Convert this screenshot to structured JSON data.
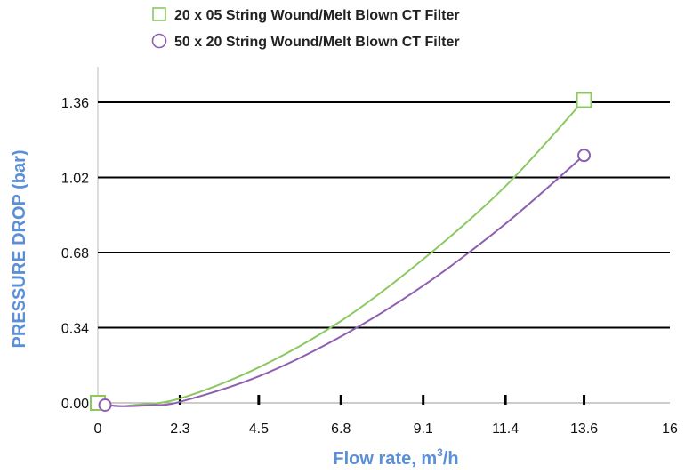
{
  "chart_data": {
    "type": "line",
    "xlabel": "Flow rate, m",
    "xlabel_sup": "3",
    "xlabel_suffix": "/h",
    "ylabel": "PRESSURE  DROP  (bar)",
    "x_ticks": [
      "0",
      "2.3",
      "4.5",
      "6.8",
      "9.1",
      "11.4",
      "13.6",
      "16"
    ],
    "y_ticks": [
      "0.00",
      "0.34",
      "0.68",
      "1.02",
      "1.36"
    ],
    "xlim": [
      0,
      16
    ],
    "ylim": [
      0,
      1.36
    ],
    "grid": "horizontal",
    "legend_position": "top",
    "series": [
      {
        "name": "20 x 05 String Wound/Melt Blown CT Filter",
        "color": "#8cc860",
        "marker": "square",
        "x": [
          0,
          0.5,
          1.0,
          2.3,
          4.5,
          6.8,
          9.1,
          11.4,
          13.6
        ],
        "y": [
          0.0,
          -0.015,
          -0.01,
          0.02,
          0.16,
          0.37,
          0.65,
          0.98,
          1.37
        ]
      },
      {
        "name": "50 x 20 String Wound/Melt Blown CT Filter",
        "color": "#8e5fb0",
        "marker": "circle",
        "x": [
          0.2,
          0.8,
          1.5,
          2.3,
          4.5,
          6.8,
          9.1,
          11.4,
          13.6
        ],
        "y": [
          -0.01,
          -0.015,
          -0.01,
          0.005,
          0.12,
          0.3,
          0.53,
          0.81,
          1.12
        ]
      }
    ],
    "endpoint_markers": [
      {
        "series": 0,
        "x": 13.6,
        "y": 1.37
      },
      {
        "series": 0,
        "x": 0.0,
        "y": 0.0
      },
      {
        "series": 1,
        "x": 13.6,
        "y": 1.12
      },
      {
        "series": 1,
        "x": 0.2,
        "y": -0.01
      }
    ],
    "colors": {
      "grid": "#000000",
      "axis_title": "#5b8fd6",
      "green": "#8cc860",
      "purple": "#8e5fb0"
    }
  }
}
